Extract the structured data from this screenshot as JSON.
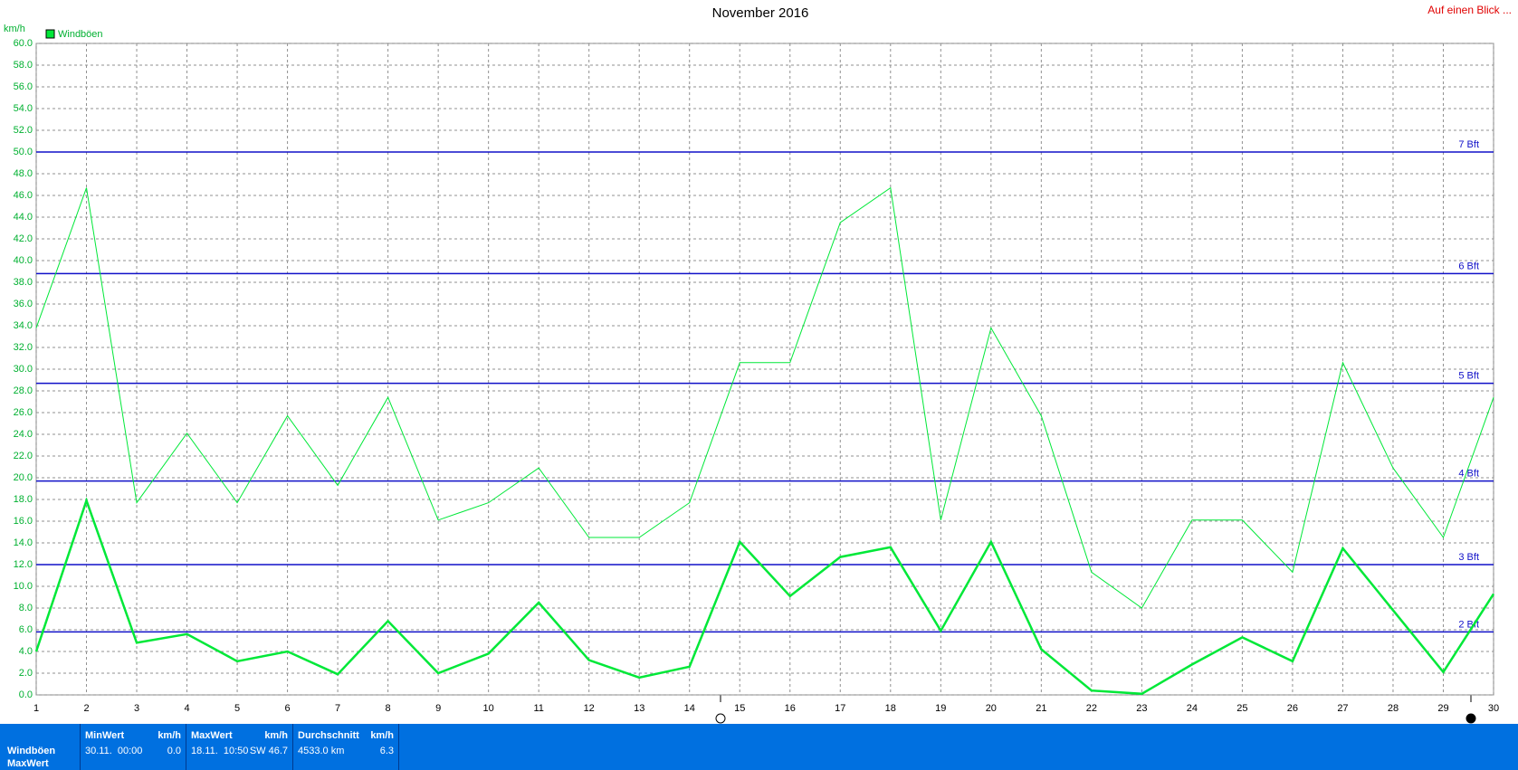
{
  "chart_data": {
    "type": "line",
    "title": "November 2016",
    "corner_link": "Auf einen Blick ...",
    "y_label": "km/h",
    "x": [
      1,
      2,
      3,
      4,
      5,
      6,
      7,
      8,
      9,
      10,
      11,
      12,
      13,
      14,
      15,
      16,
      17,
      18,
      19,
      20,
      21,
      22,
      23,
      24,
      25,
      26,
      27,
      28,
      29,
      30
    ],
    "xlim": [
      1,
      30
    ],
    "xticks": [
      1,
      2,
      3,
      4,
      5,
      6,
      7,
      8,
      9,
      10,
      11,
      12,
      13,
      14,
      15,
      16,
      17,
      18,
      19,
      20,
      21,
      22,
      23,
      24,
      25,
      26,
      27,
      28,
      29,
      30
    ],
    "ylim": [
      0,
      60
    ],
    "yticks": [
      {
        "value": 0,
        "label": "0.0"
      },
      {
        "value": 2,
        "label": "2.0"
      },
      {
        "value": 4,
        "label": "4.0"
      },
      {
        "value": 6,
        "label": "6.0"
      },
      {
        "value": 8,
        "label": "8.0"
      },
      {
        "value": 10,
        "label": "10.0"
      },
      {
        "value": 12,
        "label": "12.0"
      },
      {
        "value": 14,
        "label": "14.0"
      },
      {
        "value": 16,
        "label": "16.0"
      },
      {
        "value": 18,
        "label": "18.0"
      },
      {
        "value": 20,
        "label": "20.0"
      },
      {
        "value": 22,
        "label": "22.0"
      },
      {
        "value": 24,
        "label": "24.0"
      },
      {
        "value": 26,
        "label": "26.0"
      },
      {
        "value": 28,
        "label": "28.0"
      },
      {
        "value": 30,
        "label": "30.0"
      },
      {
        "value": 32,
        "label": "32.0"
      },
      {
        "value": 34,
        "label": "34.0"
      },
      {
        "value": 36,
        "label": "36.0"
      },
      {
        "value": 38,
        "label": "38.0"
      },
      {
        "value": 40,
        "label": "40.0"
      },
      {
        "value": 42,
        "label": "42.0"
      },
      {
        "value": 44,
        "label": "44.0"
      },
      {
        "value": 46,
        "label": "46.0"
      },
      {
        "value": 48,
        "label": "48.0"
      },
      {
        "value": 50,
        "label": "50.0"
      },
      {
        "value": 52,
        "label": "52.0"
      },
      {
        "value": 54,
        "label": "54.0"
      },
      {
        "value": 56,
        "label": "56.0"
      },
      {
        "value": 58,
        "label": "58.0"
      },
      {
        "value": 60,
        "label": "60.0"
      }
    ],
    "grid": true,
    "series": [
      {
        "name": "Windböen",
        "color": "#00e838",
        "width": 1,
        "values": [
          33.8,
          46.7,
          17.7,
          24.1,
          17.7,
          25.7,
          19.3,
          27.4,
          16.1,
          17.7,
          20.9,
          14.5,
          14.5,
          17.7,
          30.6,
          30.6,
          43.5,
          46.7,
          16.1,
          33.8,
          25.7,
          11.3,
          8.0,
          16.1,
          16.1,
          11.3,
          30.6,
          20.9,
          14.5,
          27.4
        ]
      },
      {
        "color": "#00e838",
        "width": 2.5,
        "values": [
          4.0,
          17.9,
          4.8,
          5.6,
          3.1,
          4.0,
          1.9,
          6.8,
          2.0,
          3.8,
          8.5,
          3.2,
          1.6,
          2.6,
          14.1,
          9.1,
          12.7,
          13.6,
          5.9,
          14.1,
          4.2,
          0.4,
          0.1,
          2.8,
          5.3,
          3.1,
          13.5,
          7.8,
          2.1,
          9.3
        ]
      }
    ],
    "reference_lines": {
      "color": "#1010c8",
      "lines": [
        {
          "value": 5.8,
          "label": "2 Bft"
        },
        {
          "value": 12.0,
          "label": "3 Bft"
        },
        {
          "value": 19.7,
          "label": "4 Bft"
        },
        {
          "value": 28.7,
          "label": "5 Bft"
        },
        {
          "value": 38.8,
          "label": "6 Bft"
        },
        {
          "value": 50.0,
          "label": "7 Bft"
        }
      ]
    }
  },
  "summary": {
    "row_labels": [
      "Windböen",
      "MaxWert"
    ],
    "columns": [
      {
        "header": "MinWert",
        "unit": "km/h",
        "cells": [
          "30.11.  00:00",
          "0.0"
        ]
      },
      {
        "header": "MaxWert",
        "unit": "km/h",
        "cells": [
          "18.11.  10:50",
          "SW 46.7"
        ]
      },
      {
        "header": "Durchschnitt",
        "unit": "km/h",
        "cells": [
          "4533.0 km",
          "6.3"
        ]
      }
    ]
  }
}
